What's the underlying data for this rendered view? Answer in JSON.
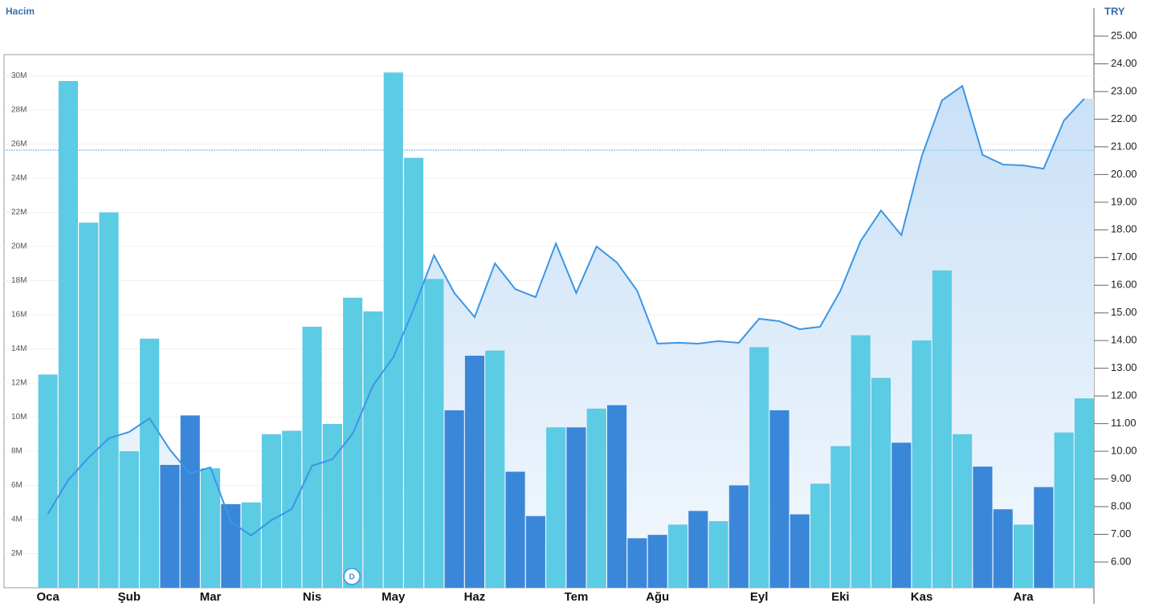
{
  "chart_data": {
    "type": "combo",
    "y_label": "Hacim",
    "y2_label": "TRY",
    "categories": [
      "Oca",
      null,
      null,
      null,
      "Şub",
      null,
      null,
      null,
      "Mar",
      null,
      null,
      null,
      null,
      "Nis",
      null,
      null,
      null,
      "May",
      null,
      null,
      null,
      "Haz",
      null,
      null,
      null,
      null,
      "Tem",
      null,
      null,
      null,
      "Ağu",
      null,
      null,
      null,
      null,
      "Eyl",
      null,
      null,
      null,
      "Eki",
      null,
      null,
      null,
      "Kas",
      null,
      null,
      null,
      null,
      "Ara",
      null,
      null,
      null
    ],
    "series": [
      {
        "type": "bar",
        "values": [
          12.5,
          29.7,
          21.4,
          22.0,
          8.0,
          14.6,
          7.2,
          10.1,
          7.0,
          4.9,
          5.0,
          9.0,
          9.2,
          15.3,
          9.6,
          17.0,
          16.2,
          30.2,
          25.2,
          18.1,
          10.4,
          13.6,
          13.9,
          6.8,
          4.2,
          9.4,
          9.4,
          10.5,
          10.7,
          2.9,
          3.1,
          3.7,
          4.5,
          3.9,
          6.0,
          14.1,
          10.4,
          4.3,
          6.1,
          8.3,
          14.8,
          12.3,
          8.5,
          14.5,
          18.6,
          9.0,
          7.1,
          4.6,
          3.7,
          5.9,
          9.1,
          11.1
        ],
        "colors": [
          "#5ccbe4",
          "#5ccbe4",
          "#5ccbe4",
          "#5ccbe4",
          "#5ccbe4",
          "#5ccbe4",
          "#3a87d9",
          "#3a87d9",
          "#5ccbe4",
          "#3a87d9",
          "#5ccbe4",
          "#5ccbe4",
          "#5ccbe4",
          "#5ccbe4",
          "#5ccbe4",
          "#5ccbe4",
          "#5ccbe4",
          "#5ccbe4",
          "#5ccbe4",
          "#5ccbe4",
          "#3a87d9",
          "#3a87d9",
          "#5ccbe4",
          "#3a87d9",
          "#3a87d9",
          "#5ccbe4",
          "#3a87d9",
          "#5ccbe4",
          "#3a87d9",
          "#3a87d9",
          "#3a87d9",
          "#5ccbe4",
          "#3a87d9",
          "#5ccbe4",
          "#3a87d9",
          "#5ccbe4",
          "#3a87d9",
          "#3a87d9",
          "#5ccbe4",
          "#5ccbe4",
          "#5ccbe4",
          "#5ccbe4",
          "#3a87d9",
          "#5ccbe4",
          "#5ccbe4",
          "#5ccbe4",
          "#3a87d9",
          "#3a87d9",
          "#5ccbe4",
          "#3a87d9",
          "#5ccbe4",
          "#5ccbe4"
        ]
      },
      {
        "type": "line",
        "axis": "y2",
        "color": "#3b96e6",
        "values": [
          7.74,
          8.96,
          9.77,
          10.47,
          10.7,
          11.19,
          10.06,
          9.19,
          9.42,
          7.45,
          6.96,
          7.51,
          7.91,
          9.48,
          9.71,
          10.64,
          12.38,
          13.4,
          15.14,
          17.08,
          15.72,
          14.85,
          16.79,
          15.86,
          15.57,
          17.51,
          15.72,
          17.4,
          16.82,
          15.8,
          13.89,
          13.92,
          13.89,
          13.98,
          13.92,
          14.79,
          14.7,
          14.41,
          14.5,
          15.8,
          17.6,
          18.7,
          17.81,
          20.65,
          22.68,
          23.2,
          20.71,
          20.36,
          20.33,
          20.21,
          21.95,
          22.74
        ]
      }
    ],
    "reference_line": 20.88,
    "annotations": [
      "D"
    ],
    "ylim": [
      0,
      31.25
    ],
    "yticks": [
      {
        "value": 2,
        "label": "2M"
      },
      {
        "value": 4,
        "label": "4M"
      },
      {
        "value": 6,
        "label": "6M"
      },
      {
        "value": 8,
        "label": "8M"
      },
      {
        "value": 10,
        "label": "10M"
      },
      {
        "value": 12,
        "label": "12M"
      },
      {
        "value": 14,
        "label": "14M"
      },
      {
        "value": 16,
        "label": "16M"
      },
      {
        "value": 18,
        "label": "18M"
      },
      {
        "value": 20,
        "label": "20M"
      },
      {
        "value": 22,
        "label": "22M"
      },
      {
        "value": 24,
        "label": "24M"
      },
      {
        "value": 26,
        "label": "26M"
      },
      {
        "value": 28,
        "label": "28M"
      },
      {
        "value": 30,
        "label": "30M"
      }
    ],
    "y2lim": [
      5.07,
      25
    ],
    "y2ticks": [
      {
        "value": 6,
        "label": "6.00"
      },
      {
        "value": 7,
        "label": "7.00"
      },
      {
        "value": 8,
        "label": "8.00"
      },
      {
        "value": 9,
        "label": "9.00"
      },
      {
        "value": 10,
        "label": "10.00"
      },
      {
        "value": 11,
        "label": "11.00"
      },
      {
        "value": 12,
        "label": "12.00"
      },
      {
        "value": 13,
        "label": "13.00"
      },
      {
        "value": 14,
        "label": "14.00"
      },
      {
        "value": 15,
        "label": "15.00"
      },
      {
        "value": 16,
        "label": "16.00"
      },
      {
        "value": 17,
        "label": "17.00"
      },
      {
        "value": 18,
        "label": "18.00"
      },
      {
        "value": 19,
        "label": "19.00"
      },
      {
        "value": 20,
        "label": "20.00"
      },
      {
        "value": 21,
        "label": "21.00"
      },
      {
        "value": 22,
        "label": "22.00"
      },
      {
        "value": 23,
        "label": "23.00"
      },
      {
        "value": 24,
        "label": "24.00"
      },
      {
        "value": 25,
        "label": "25.00"
      }
    ],
    "grid": true
  }
}
